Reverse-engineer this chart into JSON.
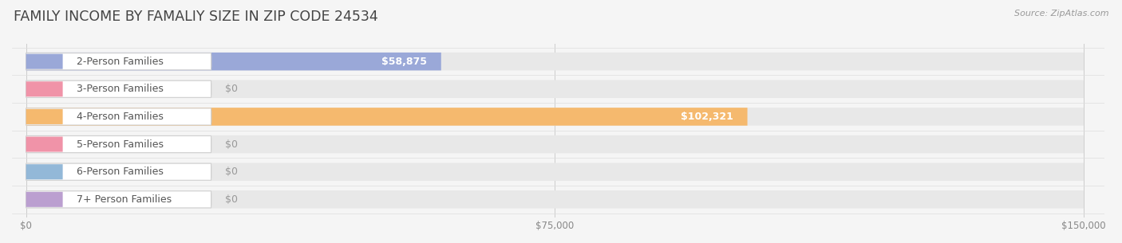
{
  "title": "FAMILY INCOME BY FAMALIY SIZE IN ZIP CODE 24534",
  "source": "Source: ZipAtlas.com",
  "categories": [
    "2-Person Families",
    "3-Person Families",
    "4-Person Families",
    "5-Person Families",
    "6-Person Families",
    "7+ Person Families"
  ],
  "values": [
    58875,
    0,
    102321,
    0,
    0,
    0
  ],
  "bar_colors": [
    "#9aa8d8",
    "#f093a8",
    "#f5b96e",
    "#f093a8",
    "#93b8d8",
    "#bb9fd0"
  ],
  "value_labels": [
    "$58,875",
    "$0",
    "$102,321",
    "$0",
    "$0",
    "$0"
  ],
  "xlim": [
    0,
    150000
  ],
  "xticks": [
    0,
    75000,
    150000
  ],
  "xticklabels": [
    "$0",
    "$75,000",
    "$150,000"
  ],
  "background_color": "#f5f5f5",
  "bar_bg_color": "#e8e8e8",
  "title_fontsize": 12.5,
  "bar_height": 0.65,
  "label_fontsize": 9.0,
  "figwidth": 14.06,
  "figheight": 3.05,
  "dpi": 100
}
